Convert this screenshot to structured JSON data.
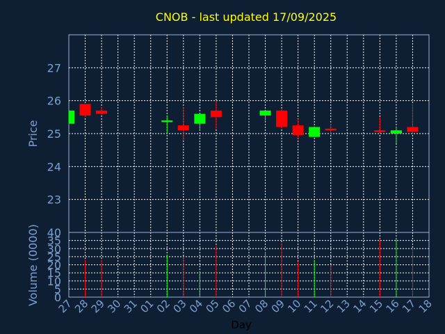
{
  "chart_data": {
    "type": "candlestick",
    "title": "CNOB - last updated 17/09/2025",
    "ylabel": "Price",
    "volume_label": "Volume (0000)",
    "xlabel": "Day",
    "grid": true,
    "colors": {
      "background": "#0e1f33",
      "up": "#00ff00",
      "down": "#ff0000",
      "grid": "#ffffff",
      "axis_text": "#7f9fcf",
      "title": "#ffff00"
    },
    "price_ylim": [
      22.0,
      28.0
    ],
    "price_ticks": [
      "23",
      "24",
      "25",
      "26",
      "27"
    ],
    "volume_ylim": [
      0,
      40
    ],
    "volume_ticks": [
      "0",
      "5",
      "10",
      "15",
      "20",
      "25",
      "30",
      "35",
      "40"
    ],
    "x_ticks": [
      "27",
      "28",
      "29",
      "30",
      "31",
      "01",
      "02",
      "03",
      "04",
      "05",
      "06",
      "07",
      "08",
      "09",
      "10",
      "11",
      "12",
      "13",
      "14",
      "15",
      "16",
      "17",
      "18"
    ],
    "candles": [
      {
        "day": "27",
        "open": 25.3,
        "high": 25.7,
        "low": 25.3,
        "close": 25.7,
        "volume": 0
      },
      {
        "day": "28",
        "open": 25.9,
        "high": 25.9,
        "low": 25.5,
        "close": 25.55,
        "volume": 23
      },
      {
        "day": "29",
        "open": 25.7,
        "high": 25.8,
        "low": 25.55,
        "close": 25.6,
        "volume": 23
      },
      {
        "day": "02",
        "open": 25.35,
        "high": 25.55,
        "low": 25.0,
        "close": 25.4,
        "volume": 26
      },
      {
        "day": "03",
        "open": 25.25,
        "high": 25.8,
        "low": 24.8,
        "close": 25.1,
        "volume": 25
      },
      {
        "day": "04",
        "open": 25.3,
        "high": 25.6,
        "low": 25.1,
        "close": 25.6,
        "volume": 16
      },
      {
        "day": "05",
        "open": 25.7,
        "high": 26.0,
        "low": 25.15,
        "close": 25.5,
        "volume": 32
      },
      {
        "day": "08",
        "open": 25.55,
        "high": 25.7,
        "low": 25.4,
        "close": 25.7,
        "volume": 28
      },
      {
        "day": "09",
        "open": 25.7,
        "high": 25.75,
        "low": 25.15,
        "close": 25.2,
        "volume": 33
      },
      {
        "day": "10",
        "open": 25.25,
        "high": 25.45,
        "low": 24.85,
        "close": 24.95,
        "volume": 22
      },
      {
        "day": "11",
        "open": 24.9,
        "high": 25.2,
        "low": 24.9,
        "close": 25.2,
        "volume": 23
      },
      {
        "day": "12",
        "open": 25.15,
        "high": 25.3,
        "low": 25.0,
        "close": 25.1,
        "volume": 20
      },
      {
        "day": "15",
        "open": 25.1,
        "high": 25.5,
        "low": 25.0,
        "close": 25.05,
        "volume": 36
      },
      {
        "day": "16",
        "open": 25.0,
        "high": 25.2,
        "low": 24.7,
        "close": 25.1,
        "volume": 36
      },
      {
        "day": "17",
        "open": 25.2,
        "high": 25.9,
        "low": 25.0,
        "close": 25.05,
        "volume": 30
      }
    ]
  }
}
